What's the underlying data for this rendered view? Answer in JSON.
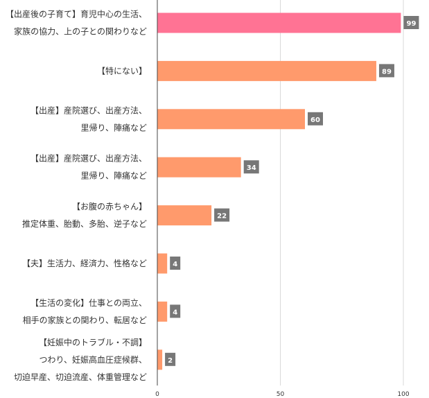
{
  "chart_data": {
    "type": "bar",
    "orientation": "horizontal",
    "categories": [
      [
        "【出産後の子育て】育児中心の生活、",
        "家族の協力、上の子との関わりなど"
      ],
      [
        "【特にない】"
      ],
      [
        "【出産】産院選び、出産方法、",
        "里帰り、陣痛など"
      ],
      [
        "【出産】産院選び、出産方法、",
        "里帰り、陣痛など"
      ],
      [
        "【お腹の赤ちゃん】",
        "推定体重、胎動、多胎、逆子など"
      ],
      [
        "【夫】生活力、経済力、性格など"
      ],
      [
        "【生活の変化】仕事との両立、",
        "相手の家族との関わり、転居など"
      ],
      [
        "【妊娠中のトラブル・不調】",
        "つわり、妊娠高血圧症候群、",
        "切迫早産、切迫流産、体重管理など"
      ]
    ],
    "values": [
      99,
      89,
      60,
      34,
      22,
      4,
      4,
      2
    ],
    "bar_colors": [
      "#ff7394",
      "#ff9a6c",
      "#ff9a6c",
      "#ff9a6c",
      "#ff9a6c",
      "#ff9a6c",
      "#ff9a6c",
      "#ff9a6c"
    ],
    "label_bg": "#777777",
    "xlim": [
      0,
      100
    ],
    "xticks": [
      0,
      50,
      100
    ],
    "grid": true,
    "title": "",
    "xlabel": "",
    "ylabel": ""
  }
}
